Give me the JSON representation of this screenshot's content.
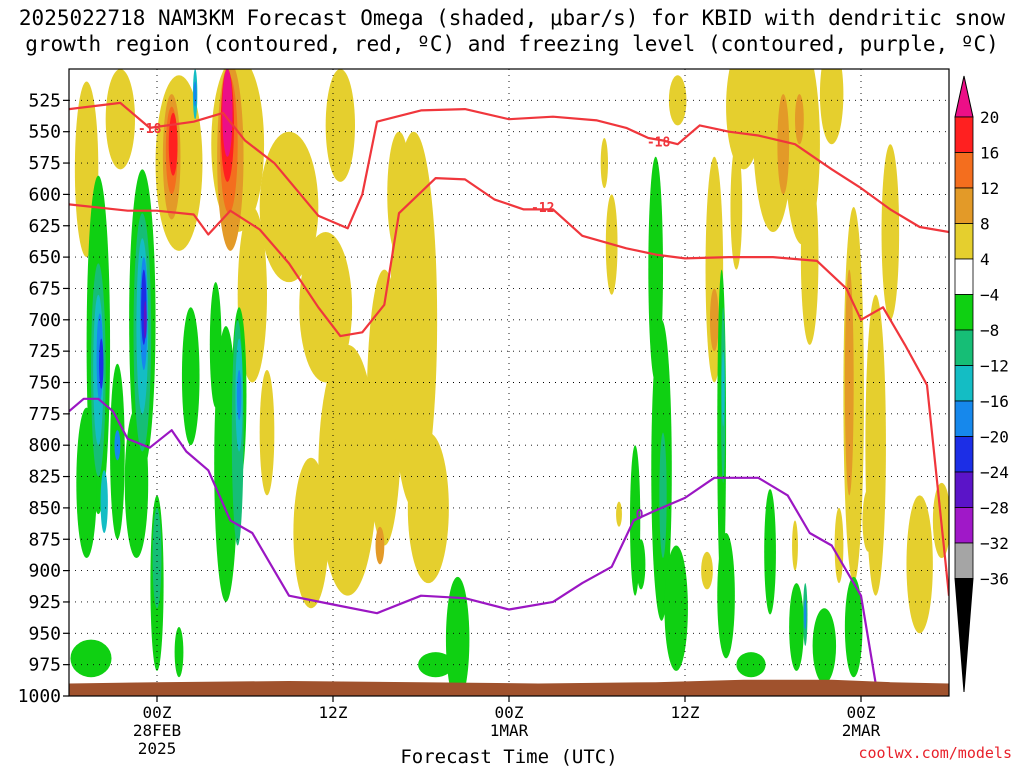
{
  "title_line1": "2025022718 NAM3KM Forecast Omega (shaded, μbar/s) for KBID with dendritic snow",
  "title_line2": "growth region (contoured, red, ºC) and freezing level (contoured, purple, ºC)",
  "credit": "coolwx.com/models",
  "chart_data": {
    "type": "heatmap",
    "title": "2025022718 NAM3KM Forecast Omega (shaded, μbar/s) for KBID with dendritic snow growth region (contoured, red, ºC) and freezing level (contoured, purple, ºC)",
    "xlabel": "Forecast Time (UTC)",
    "ylabel": "",
    "x_ticks": [
      {
        "hour": 6,
        "lines": [
          "00Z",
          "28FEB",
          "2025"
        ]
      },
      {
        "hour": 18,
        "lines": [
          "12Z"
        ]
      },
      {
        "hour": 30,
        "lines": [
          "00Z",
          "1MAR"
        ]
      },
      {
        "hour": 42,
        "lines": [
          "12Z"
        ]
      },
      {
        "hour": 54,
        "lines": [
          "00Z",
          "2MAR"
        ]
      }
    ],
    "xlim_hours": [
      0,
      60
    ],
    "y_ticks": [
      525,
      550,
      575,
      600,
      625,
      650,
      675,
      700,
      725,
      750,
      775,
      800,
      825,
      850,
      875,
      900,
      925,
      950,
      975,
      1000
    ],
    "ylim_hPa": [
      500,
      1000
    ],
    "grid": true,
    "colorbar": {
      "labels": [
        "20",
        "16",
        "12",
        "8",
        "4",
        "−4",
        "−8",
        "−12",
        "−16",
        "−20",
        "−24",
        "−28",
        "−32",
        "−36"
      ],
      "levels": [
        20,
        16,
        12,
        8,
        4,
        -4,
        -8,
        -12,
        -16,
        -20,
        -24,
        -28,
        -32,
        -36
      ],
      "colors": [
        "#ff2020",
        "#f46e1e",
        "#e39a28",
        "#e5cf2e",
        "#ffffff",
        "#0fd012",
        "#16be76",
        "#14bdc4",
        "#1688ec",
        "#1c2ee6",
        "#5b14c8",
        "#a018c8",
        "#a5a5a5"
      ],
      "top_arrow_color": "#ec0f87",
      "bottom_arrow_color": "#000000",
      "placement": "right"
    },
    "contours": [
      {
        "name": "-18",
        "color": "#f0363c",
        "label_points": [
          [
            5.5,
            547
          ],
          [
            40.2,
            558
          ]
        ],
        "points": [
          [
            0,
            532
          ],
          [
            3.5,
            527
          ],
          [
            5.5,
            547
          ],
          [
            8.5,
            542
          ],
          [
            10.5,
            535
          ],
          [
            12,
            557
          ],
          [
            14,
            575
          ],
          [
            17,
            617
          ],
          [
            19,
            627
          ],
          [
            20,
            600
          ],
          [
            21,
            542
          ],
          [
            24,
            533
          ],
          [
            27,
            532
          ],
          [
            30,
            540
          ],
          [
            33,
            538
          ],
          [
            36,
            541
          ],
          [
            38,
            547
          ],
          [
            39.5,
            555
          ],
          [
            40.5,
            557
          ],
          [
            41.5,
            560
          ],
          [
            43,
            545
          ],
          [
            45,
            550
          ],
          [
            47,
            553
          ],
          [
            49.5,
            560
          ],
          [
            52,
            580
          ],
          [
            54,
            595
          ],
          [
            56,
            612
          ],
          [
            58,
            626
          ],
          [
            60,
            630
          ]
        ]
      },
      {
        "name": "-12",
        "color": "#f0363c",
        "label_points": [
          [
            32.3,
            610
          ]
        ],
        "points": [
          [
            0,
            608
          ],
          [
            4,
            613
          ],
          [
            6,
            613
          ],
          [
            8.5,
            616
          ],
          [
            9.5,
            632
          ],
          [
            11,
            613
          ],
          [
            13,
            628
          ],
          [
            15,
            655
          ],
          [
            17,
            690
          ],
          [
            18.5,
            713
          ],
          [
            20,
            710
          ],
          [
            21.5,
            688
          ],
          [
            22.5,
            615
          ],
          [
            25,
            587
          ],
          [
            27,
            588
          ],
          [
            29,
            604
          ],
          [
            31,
            612
          ],
          [
            33,
            612
          ],
          [
            35,
            633
          ],
          [
            38,
            643
          ],
          [
            40,
            648
          ],
          [
            42,
            651
          ],
          [
            45,
            650
          ],
          [
            48,
            650
          ],
          [
            51,
            653
          ],
          [
            53,
            675
          ],
          [
            54,
            700
          ],
          [
            55.5,
            690
          ],
          [
            57,
            720
          ],
          [
            58.5,
            752
          ],
          [
            60,
            920
          ]
        ]
      },
      {
        "name": "0",
        "color": "#9b16c3",
        "label_points": [
          [
            38.9,
            855
          ]
        ],
        "points": [
          [
            0,
            773
          ],
          [
            1,
            763
          ],
          [
            2,
            763
          ],
          [
            3,
            773
          ],
          [
            4,
            795
          ],
          [
            5.5,
            802
          ],
          [
            7,
            788
          ],
          [
            8,
            805
          ],
          [
            9.5,
            820
          ],
          [
            11,
            860
          ],
          [
            12.5,
            870
          ],
          [
            15,
            920
          ],
          [
            18,
            927
          ],
          [
            21,
            934
          ],
          [
            24,
            920
          ],
          [
            27,
            922
          ],
          [
            30,
            931
          ],
          [
            33,
            925
          ],
          [
            35,
            910
          ],
          [
            37,
            897
          ],
          [
            38.5,
            860
          ],
          [
            40,
            852
          ],
          [
            42,
            842
          ],
          [
            44,
            826
          ],
          [
            47,
            826
          ],
          [
            49,
            840
          ],
          [
            50.5,
            870
          ],
          [
            52,
            880
          ],
          [
            54,
            920
          ],
          [
            55,
            990
          ]
        ]
      }
    ]
  }
}
